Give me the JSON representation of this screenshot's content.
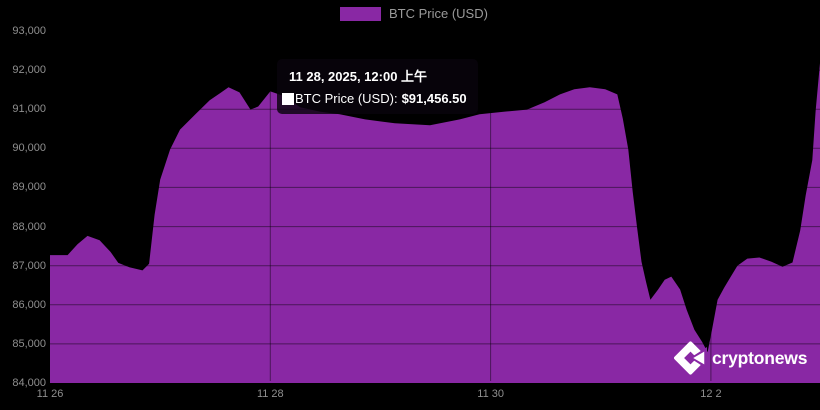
{
  "legend": {
    "label": "BTC Price (USD)",
    "swatch_color": "#8928A4"
  },
  "tooltip": {
    "title": "11 28, 2025, 12:00 上午",
    "series_label": "BTC Price (USD):",
    "value": "$91,456.50"
  },
  "watermark": {
    "text": "cryptonews"
  },
  "colors": {
    "area_fill": "#8928A4",
    "background": "#000000",
    "axis_text": "#8f8f8f",
    "gridline": "rgba(0,0,0,0.45)"
  },
  "chart_data": {
    "type": "area",
    "title": "",
    "xlabel": "",
    "ylabel": "",
    "legend_position": "top-center",
    "grid": true,
    "y_axis": {
      "min": 84000,
      "max": 93000,
      "tick_step": 1000,
      "tick_values": [
        93000,
        92000,
        91000,
        90000,
        89000,
        88000,
        87000,
        86000,
        85000,
        84000
      ],
      "tick_labels": [
        "93,000",
        "92,000",
        "91,000",
        "90,000",
        "89,000",
        "88,000",
        "87,000",
        "86,000",
        "85,000",
        "84,000"
      ]
    },
    "x_axis": {
      "unit": "days since 11/26 00:00, year 2025",
      "tick_t": [
        0,
        2,
        4,
        6
      ],
      "tick_labels": [
        "11 26",
        "11 28",
        "11 30",
        "12 2"
      ],
      "t_range": [
        0,
        6.99
      ]
    },
    "hover_point": {
      "t": 2.0,
      "price": 91456.5,
      "date_label": "11 28, 2025, 12:00 上午"
    },
    "series": [
      {
        "name": "BTC Price (USD)",
        "color": "#8928A4",
        "points": [
          [
            0,
            87270
          ],
          [
            0.16,
            87270
          ],
          [
            0.25,
            87550
          ],
          [
            0.34,
            87760
          ],
          [
            0.45,
            87650
          ],
          [
            0.55,
            87350
          ],
          [
            0.62,
            87070
          ],
          [
            0.72,
            86960
          ],
          [
            0.84,
            86880
          ],
          [
            0.9,
            87050
          ],
          [
            0.95,
            88300
          ],
          [
            1.0,
            89200
          ],
          [
            1.09,
            89970
          ],
          [
            1.18,
            90480
          ],
          [
            1.32,
            90870
          ],
          [
            1.45,
            91230
          ],
          [
            1.55,
            91420
          ],
          [
            1.62,
            91560
          ],
          [
            1.72,
            91430
          ],
          [
            1.82,
            90990
          ],
          [
            1.89,
            91070
          ],
          [
            2.0,
            91456.5
          ],
          [
            2.13,
            91330
          ],
          [
            2.27,
            91050
          ],
          [
            2.45,
            90940
          ],
          [
            2.63,
            90870
          ],
          [
            2.86,
            90740
          ],
          [
            3.13,
            90640
          ],
          [
            3.45,
            90590
          ],
          [
            3.72,
            90740
          ],
          [
            3.9,
            90870
          ],
          [
            4.13,
            90940
          ],
          [
            4.33,
            90990
          ],
          [
            4.49,
            91180
          ],
          [
            4.63,
            91380
          ],
          [
            4.76,
            91510
          ],
          [
            4.9,
            91560
          ],
          [
            5.04,
            91510
          ],
          [
            5.15,
            91380
          ],
          [
            5.2,
            90760
          ],
          [
            5.25,
            89970
          ],
          [
            5.29,
            88890
          ],
          [
            5.33,
            87970
          ],
          [
            5.37,
            87100
          ],
          [
            5.41,
            86590
          ],
          [
            5.45,
            86130
          ],
          [
            5.52,
            86390
          ],
          [
            5.58,
            86640
          ],
          [
            5.64,
            86720
          ],
          [
            5.72,
            86390
          ],
          [
            5.78,
            85870
          ],
          [
            5.85,
            85360
          ],
          [
            5.92,
            85050
          ],
          [
            5.97,
            84790
          ],
          [
            6.01,
            85360
          ],
          [
            6.06,
            86130
          ],
          [
            6.12,
            86440
          ],
          [
            6.18,
            86720
          ],
          [
            6.24,
            87000
          ],
          [
            6.33,
            87180
          ],
          [
            6.44,
            87210
          ],
          [
            6.55,
            87100
          ],
          [
            6.65,
            86970
          ],
          [
            6.74,
            87080
          ],
          [
            6.81,
            87900
          ],
          [
            6.86,
            88800
          ],
          [
            6.92,
            89700
          ],
          [
            6.95,
            90950
          ],
          [
            6.99,
            92180
          ]
        ]
      }
    ]
  }
}
